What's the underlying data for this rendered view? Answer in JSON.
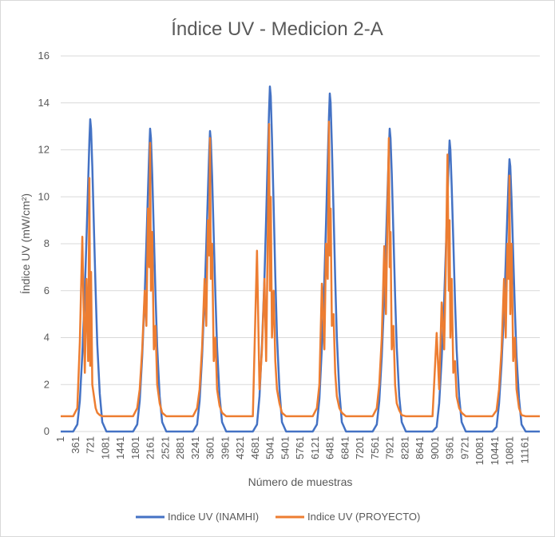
{
  "chart_data": {
    "type": "line",
    "title": "Índice UV - Medicion 2-A",
    "x_label": "Número de muestras",
    "y_label": "Índice UV (mW/cm²)",
    "x": [
      1,
      301,
      401,
      461,
      521,
      581,
      621,
      661,
      691,
      711,
      731,
      761,
      801,
      841,
      881,
      941,
      1001,
      1101,
      1441,
      1741,
      1841,
      1901,
      1961,
      2021,
      2061,
      2101,
      2131,
      2151,
      2171,
      2201,
      2241,
      2281,
      2321,
      2381,
      2441,
      2541,
      2881,
      3181,
      3281,
      3341,
      3401,
      3461,
      3501,
      3541,
      3571,
      3591,
      3611,
      3641,
      3681,
      3721,
      3761,
      3821,
      3881,
      3981,
      4321,
      4621,
      4721,
      4781,
      4841,
      4901,
      4941,
      4981,
      5011,
      5031,
      5051,
      5081,
      5121,
      5161,
      5201,
      5261,
      5321,
      5421,
      5761,
      6061,
      6161,
      6221,
      6281,
      6341,
      6381,
      6421,
      6451,
      6471,
      6491,
      6521,
      6561,
      6601,
      6641,
      6701,
      6761,
      6861,
      7201,
      7501,
      7601,
      7661,
      7721,
      7781,
      7821,
      7861,
      7891,
      7911,
      7931,
      7961,
      8001,
      8041,
      8081,
      8141,
      8201,
      8301,
      8641,
      8941,
      9041,
      9101,
      9161,
      9221,
      9261,
      9301,
      9331,
      9351,
      9371,
      9401,
      9441,
      9481,
      9521,
      9581,
      9641,
      9741,
      10081,
      10381,
      10481,
      10541,
      10601,
      10661,
      10701,
      10741,
      10771,
      10791,
      10811,
      10841,
      10881,
      10921,
      10961,
      11021,
      11081,
      11181,
      11521
    ],
    "series": [
      {
        "name": "Indice UV (INAMHI)",
        "color": "#4472c4",
        "values": [
          0,
          0,
          0.3,
          1.3,
          3.3,
          6.0,
          8.2,
          10.6,
          12.4,
          13.3,
          12.9,
          11.3,
          8.6,
          6.0,
          3.7,
          1.6,
          0.4,
          0,
          0,
          0,
          0.3,
          1.3,
          3.2,
          5.8,
          8.0,
          10.3,
          12.0,
          12.9,
          12.5,
          11.0,
          8.4,
          5.8,
          3.6,
          1.5,
          0.4,
          0,
          0,
          0,
          0.3,
          1.3,
          3.2,
          5.8,
          7.9,
          10.2,
          11.9,
          12.8,
          12.4,
          10.9,
          8.3,
          5.8,
          3.6,
          1.5,
          0.4,
          0,
          0,
          0,
          0.3,
          1.5,
          3.7,
          6.6,
          9.1,
          11.8,
          13.7,
          14.7,
          14.3,
          12.5,
          9.6,
          6.6,
          4.1,
          1.8,
          0.4,
          0,
          0,
          0,
          0.3,
          1.4,
          3.6,
          6.5,
          8.9,
          11.5,
          13.4,
          14.4,
          14.0,
          12.2,
          9.4,
          6.5,
          4.0,
          1.7,
          0.4,
          0,
          0,
          0,
          0.3,
          1.3,
          3.2,
          5.8,
          8.0,
          10.3,
          12.0,
          12.9,
          12.5,
          11.0,
          8.4,
          5.8,
          3.6,
          1.5,
          0.4,
          0,
          0,
          0,
          0.2,
          1.2,
          3.1,
          5.6,
          7.7,
          9.9,
          11.5,
          12.4,
          12.0,
          10.5,
          8.1,
          5.6,
          3.5,
          1.5,
          0.4,
          0,
          0,
          0,
          0.2,
          1.2,
          2.9,
          5.2,
          7.2,
          9.3,
          10.8,
          11.6,
          11.3,
          9.9,
          7.5,
          5.2,
          3.2,
          1.4,
          0.3,
          0,
          0
        ]
      },
      {
        "name": "Indice UV (PROYECTO)",
        "color": "#ed7d31",
        "values": [
          0.65,
          0.65,
          1.0,
          3.8,
          8.3,
          2.5,
          6.5,
          3.0,
          10.8,
          2.8,
          6.8,
          2.0,
          1.5,
          1.0,
          0.8,
          0.7,
          0.65,
          0.65,
          0.65,
          0.65,
          1.0,
          1.8,
          3.5,
          6.0,
          4.5,
          9.5,
          7.0,
          12.3,
          6.0,
          8.5,
          3.5,
          4.5,
          2.0,
          1.2,
          0.8,
          0.65,
          0.65,
          0.65,
          1.0,
          1.8,
          3.6,
          6.5,
          4.5,
          9.0,
          7.5,
          12.5,
          6.5,
          8.0,
          3.0,
          4.0,
          1.8,
          1.1,
          0.8,
          0.65,
          0.65,
          0.65,
          7.7,
          1.8,
          3.5,
          6.5,
          3.0,
          8.5,
          13.1,
          6.0,
          10.0,
          4.0,
          6.0,
          3.0,
          1.8,
          1.2,
          0.8,
          0.65,
          0.65,
          0.65,
          1.0,
          2.0,
          6.3,
          3.5,
          8.0,
          6.5,
          13.2,
          7.5,
          9.5,
          4.5,
          5.0,
          2.5,
          1.5,
          1.0,
          0.8,
          0.65,
          0.65,
          0.65,
          1.0,
          2.0,
          4.0,
          7.9,
          5.0,
          9.5,
          12.5,
          7.0,
          8.5,
          3.5,
          4.5,
          2.0,
          1.2,
          0.9,
          0.7,
          0.65,
          0.65,
          0.65,
          4.2,
          1.8,
          5.5,
          3.5,
          7.0,
          11.8,
          6.0,
          9.0,
          4.0,
          6.5,
          2.5,
          3.0,
          1.5,
          1.0,
          0.8,
          0.65,
          0.65,
          0.65,
          0.9,
          1.8,
          3.5,
          6.5,
          4.0,
          8.0,
          6.5,
          10.9,
          5.0,
          8.0,
          3.0,
          4.0,
          1.8,
          1.0,
          0.7,
          0.65,
          0.65
        ]
      }
    ],
    "xlim": [
      1,
      11521
    ],
    "xticks": [
      1,
      361,
      721,
      1081,
      1441,
      1801,
      2161,
      2521,
      2881,
      3241,
      3601,
      3961,
      4321,
      4681,
      5041,
      5401,
      5761,
      6121,
      6481,
      6841,
      7201,
      7561,
      7921,
      8281,
      8641,
      9001,
      9361,
      9721,
      10081,
      10441,
      10801,
      11161
    ],
    "ylim": [
      0,
      16
    ],
    "yticks": [
      0,
      2,
      4,
      6,
      8,
      10,
      12,
      14,
      16
    ],
    "grid": true,
    "legend": "bottom"
  }
}
